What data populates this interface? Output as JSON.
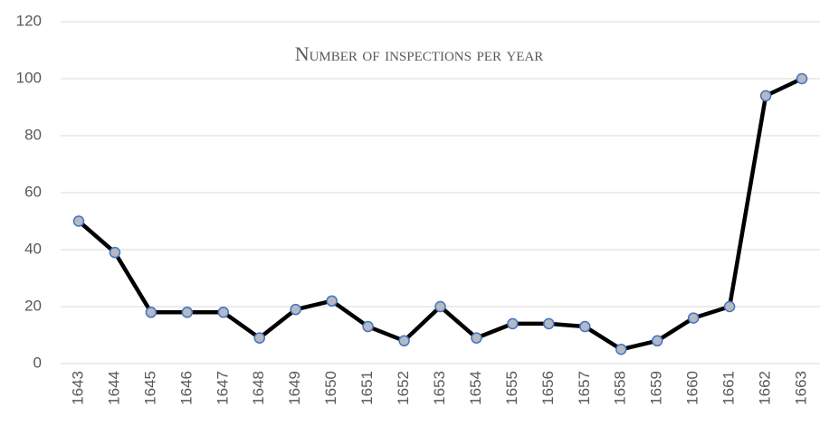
{
  "chart_data": {
    "type": "line",
    "title": "Number of inspections per year",
    "categories": [
      "1643",
      "1644",
      "1645",
      "1646",
      "1647",
      "1648",
      "1649",
      "1650",
      "1651",
      "1652",
      "1653",
      "1654",
      "1655",
      "1656",
      "1657",
      "1658",
      "1659",
      "1660",
      "1661",
      "1662",
      "1663"
    ],
    "values": [
      50,
      39,
      18,
      18,
      18,
      9,
      19,
      22,
      13,
      8,
      20,
      9,
      14,
      14,
      13,
      5,
      8,
      16,
      20,
      94,
      100
    ],
    "color": "#000000",
    "marker_fill": "#b4b9c3",
    "marker_edge": "#4472c4",
    "ylim": [
      0,
      120
    ],
    "yticks": [
      0,
      20,
      40,
      60,
      80,
      100,
      120
    ],
    "grid": true
  }
}
